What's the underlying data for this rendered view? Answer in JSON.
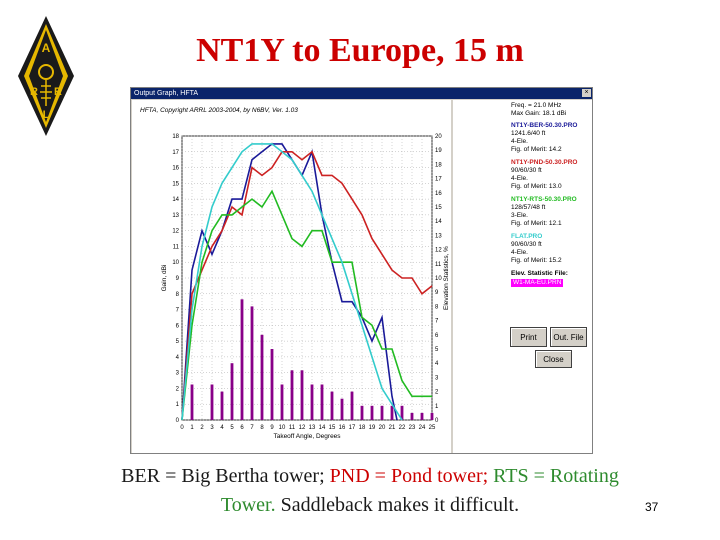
{
  "slide": {
    "title": "NT1Y to Europe, 15 m",
    "page_number": "37",
    "caption": [
      {
        "text": "BER = Big Bertha tower; ",
        "color": "black"
      },
      {
        "text": "PND = Pond tower; ",
        "color": "red"
      },
      {
        "text": "RTS = Rotating Tower.",
        "color": "green"
      },
      {
        "text": " Saddleback makes it difficult.",
        "color": "black"
      }
    ]
  },
  "window": {
    "title": "Output Graph, HFTA",
    "close_glyph": "×",
    "copyright": "HFTA, Copyright ARRL 2003-2004, by N6BV, Ver. 1.03",
    "freq": "Freq. = 21.0 MHz",
    "max_gain": "Max Gain: 18.1 dBi",
    "antennas": [
      {
        "name": "NT1Y-BER-50.30.PRO",
        "details": [
          "1241.6/40 ft",
          "4-Ele.",
          "Fig. of Merit: 14.2"
        ],
        "color": "#1a1a99"
      },
      {
        "name": "NT1Y-PND-50.30.PRO",
        "details": [
          "90/60/30 ft",
          "4-Ele.",
          "Fig. of Merit: 13.0"
        ],
        "color": "#cc2222"
      },
      {
        "name": "NT1Y-RTS-50.30.PRO",
        "details": [
          "128/57/48 ft",
          "3-Ele.",
          "Fig. of Merit: 12.1"
        ],
        "color": "#22bb22"
      },
      {
        "name": "FLAT.PRO",
        "details": [
          "90/60/30 ft",
          "4-Ele.",
          "Fig. of Merit: 15.2"
        ],
        "color": "#33cccc"
      }
    ],
    "elev_label": "Elev. Statistic File:",
    "elev_file": "W1-MA-EU.PRN",
    "buttons": {
      "print": "Print",
      "out_file": "Out. File",
      "close": "Close"
    }
  },
  "chart_data": {
    "type": "line",
    "xlabel": "Takeoff Angle, Degrees",
    "ylabel": "Gain, dBi",
    "y2label": "Elevation Statistics, %",
    "xlim": [
      0,
      25
    ],
    "ylim": [
      0,
      18
    ],
    "y2lim": [
      0,
      20
    ],
    "x_ticks": [
      0,
      1,
      2,
      3,
      4,
      5,
      6,
      7,
      8,
      9,
      10,
      11,
      12,
      13,
      14,
      15,
      16,
      17,
      18,
      19,
      20,
      21,
      22,
      23,
      24,
      25
    ],
    "y_ticks": [
      0,
      1,
      2,
      3,
      4,
      5,
      6,
      7,
      8,
      9,
      10,
      11,
      12,
      13,
      14,
      15,
      16,
      17,
      18
    ],
    "y2_ticks": [
      0,
      1,
      2,
      3,
      4,
      5,
      6,
      7,
      8,
      9,
      10,
      11,
      12,
      13,
      14,
      15,
      16,
      17,
      18,
      19,
      20
    ],
    "grid": true,
    "bars": {
      "name": "Elevation Statistics",
      "color": "#880088",
      "x": [
        1,
        2,
        3,
        4,
        5,
        6,
        7,
        8,
        9,
        10,
        11,
        12,
        13,
        14,
        15,
        16,
        17,
        18,
        19,
        20,
        21,
        22,
        23,
        24,
        25
      ],
      "values": [
        2.5,
        0,
        2.5,
        2,
        4,
        8.5,
        8,
        6,
        5,
        2.5,
        3.5,
        3.5,
        2.5,
        2.5,
        2,
        1.5,
        2,
        1,
        1,
        1,
        1,
        1,
        0.5,
        0.5,
        0.5
      ]
    },
    "series": [
      {
        "name": "NT1Y-BER-50.30.PRO",
        "color": "#1a1a99",
        "x": [
          0,
          1,
          2,
          3,
          4,
          5,
          6,
          7,
          8,
          9,
          10,
          11,
          12,
          13,
          14,
          15,
          16,
          17,
          18,
          19,
          20,
          21,
          21.5
        ],
        "values": [
          0,
          9.5,
          12,
          10.5,
          12,
          14,
          14,
          16.5,
          17,
          17.5,
          17.5,
          16.5,
          15.5,
          17,
          13,
          10,
          7.5,
          7.5,
          6.5,
          5,
          6.5,
          1.5,
          0
        ]
      },
      {
        "name": "NT1Y-PND-50.30.PRO",
        "color": "#cc2222",
        "x": [
          0,
          1,
          2,
          3,
          4,
          5,
          6,
          7,
          8,
          9,
          10,
          11,
          12,
          13,
          14,
          15,
          16,
          17,
          18,
          19,
          20,
          21,
          22,
          23,
          24,
          25
        ],
        "values": [
          0,
          8,
          9.5,
          11,
          12,
          13.5,
          13,
          16,
          15.5,
          16,
          17,
          17,
          16.5,
          17,
          15.5,
          15.5,
          15,
          14,
          13,
          11.5,
          10.5,
          9.5,
          9,
          9,
          8,
          8.5
        ]
      },
      {
        "name": "NT1Y-RTS-50.30.PRO",
        "color": "#22bb22",
        "x": [
          0,
          1,
          2,
          3,
          4,
          5,
          6,
          7,
          8,
          9,
          10,
          11,
          12,
          13,
          14,
          15,
          16,
          17,
          18,
          19,
          20,
          21,
          22,
          23,
          24,
          25
        ],
        "values": [
          0,
          6,
          10,
          12,
          13,
          13,
          13.5,
          14,
          13.5,
          14.5,
          13,
          11.5,
          11,
          12,
          12,
          10,
          10,
          10,
          6.5,
          6,
          4.5,
          4.5,
          2.5,
          1.5,
          1.5,
          1.5
        ]
      },
      {
        "name": "FLAT.PRO",
        "color": "#33cccc",
        "x": [
          0,
          1,
          2,
          3,
          4,
          5,
          6,
          7,
          8,
          9,
          10,
          11,
          12,
          13,
          14,
          15,
          16,
          17,
          18,
          19,
          20,
          21,
          22
        ],
        "values": [
          0,
          7,
          11,
          13.5,
          15,
          16,
          17,
          17.5,
          17.5,
          17.5,
          17,
          16.5,
          15.5,
          14.5,
          13,
          11.5,
          10,
          8,
          6,
          4,
          2,
          1,
          0
        ]
      }
    ]
  }
}
